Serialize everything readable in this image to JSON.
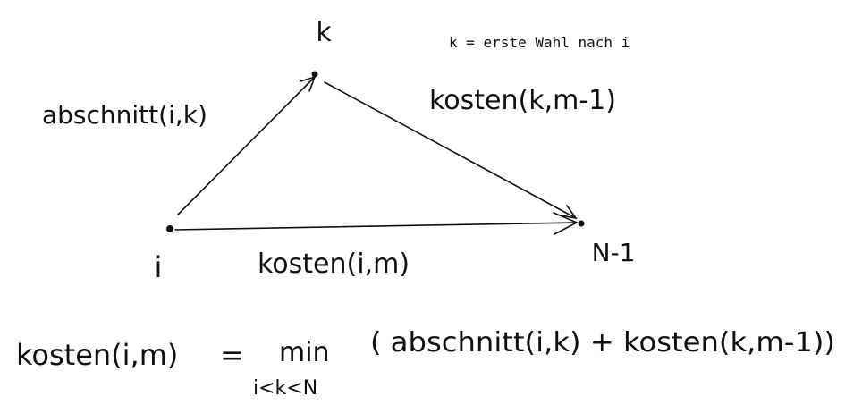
{
  "diagram": {
    "nodes": {
      "k": "k",
      "i": "i",
      "n_minus_1": "N-1"
    },
    "definition_note": "k = erste Wahl nach i",
    "edge_labels": {
      "i_to_k": "abschnitt(i,k)",
      "k_to_end": "kosten(k,m-1)",
      "i_to_end": "kosten(i,m)"
    },
    "formula": {
      "lhs": "kosten(i,m)",
      "equals": "=",
      "operator": "min",
      "subscript": "i<k<N",
      "argument": "( abschnitt(i,k) + kosten(k,m-1))"
    }
  }
}
